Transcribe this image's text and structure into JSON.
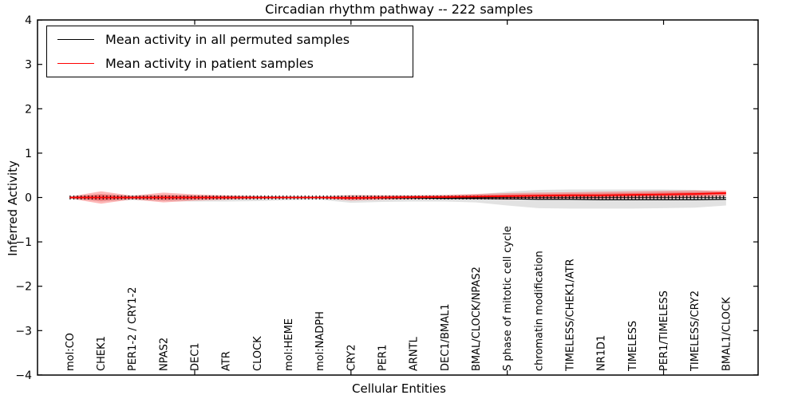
{
  "chart_data": {
    "type": "line",
    "title": "Circadian rhythm pathway -- 222 samples",
    "xlabel": "Cellular Entities",
    "ylabel": "Inferred Activity",
    "ylim": [
      -4,
      4
    ],
    "yticks": [
      4,
      3,
      2,
      1,
      0,
      -1,
      -2,
      -3,
      -4
    ],
    "ytick_labels": [
      "4",
      "3",
      "2",
      "1",
      "0",
      "−1",
      "−2",
      "−3",
      "−4"
    ],
    "grid": false,
    "legend_position": "upper left",
    "categories": [
      "mol:CO",
      "CHEK1",
      "PER1-2 / CRY1-2",
      "NPAS2",
      "DEC1",
      "ATR",
      "CLOCK",
      "mol:HEME",
      "mol:NADPH",
      "CRY2",
      "PER1",
      "ARNTL",
      "DEC1/BMAL1",
      "BMAL/CLOCK/NPAS2",
      "S phase of mitotic cell cycle",
      "chromatin modification",
      "TIMELESS/CHEK1/ATR",
      "NR1D1",
      "TIMELESS",
      "PER1/TIMELESS",
      "TIMELESS/CRY2",
      "BMAL1/CLOCK"
    ],
    "series": [
      {
        "name": "Mean activity in all permuted samples",
        "color": "#000000",
        "style": "solid",
        "values": [
          0.0,
          0.0,
          0.0,
          0.0,
          0.0,
          0.0,
          0.0,
          0.0,
          0.0,
          -0.01,
          -0.01,
          -0.01,
          -0.02,
          -0.02,
          -0.03,
          -0.04,
          -0.04,
          -0.05,
          -0.05,
          -0.05,
          -0.05,
          -0.04
        ]
      },
      {
        "name": "Mean activity in patient samples",
        "color": "#ff0000",
        "style": "solid",
        "values": [
          0.0,
          0.0,
          0.0,
          0.0,
          0.0,
          0.0,
          0.0,
          0.0,
          0.0,
          -0.01,
          0.0,
          0.01,
          0.01,
          0.02,
          0.03,
          0.04,
          0.05,
          0.05,
          0.06,
          0.07,
          0.08,
          0.1
        ]
      }
    ],
    "bands": [
      {
        "name": "permuted samples spread",
        "color": "#bfbfbf",
        "opacity": 0.45,
        "upper": [
          0.03,
          0.08,
          0.05,
          0.06,
          0.05,
          0.04,
          0.04,
          0.03,
          0.03,
          0.06,
          0.05,
          0.05,
          0.05,
          0.07,
          0.13,
          0.17,
          0.18,
          0.18,
          0.18,
          0.18,
          0.17,
          0.12
        ],
        "lower": [
          -0.03,
          -0.09,
          -0.06,
          -0.08,
          -0.09,
          -0.09,
          -0.08,
          -0.06,
          -0.05,
          -0.12,
          -0.1,
          -0.09,
          -0.09,
          -0.11,
          -0.18,
          -0.24,
          -0.25,
          -0.25,
          -0.25,
          -0.24,
          -0.23,
          -0.18
        ]
      },
      {
        "name": "patient samples spread",
        "color": "#ff0000",
        "opacity": 0.28,
        "upper": [
          0.02,
          0.14,
          0.04,
          0.11,
          0.07,
          0.05,
          0.03,
          0.02,
          0.02,
          0.05,
          0.05,
          0.05,
          0.06,
          0.08,
          0.1,
          0.11,
          0.12,
          0.13,
          0.14,
          0.15,
          0.16,
          0.16
        ],
        "lower": [
          -0.02,
          -0.14,
          -0.04,
          -0.11,
          -0.07,
          -0.05,
          -0.03,
          -0.02,
          -0.02,
          -0.07,
          -0.05,
          -0.04,
          -0.03,
          -0.04,
          -0.05,
          -0.04,
          -0.03,
          -0.03,
          -0.02,
          -0.02,
          -0.01,
          0.03
        ]
      }
    ],
    "zero_line": {
      "y": 0,
      "style": "dashed-with-tick-markers",
      "color": "#000000"
    }
  }
}
